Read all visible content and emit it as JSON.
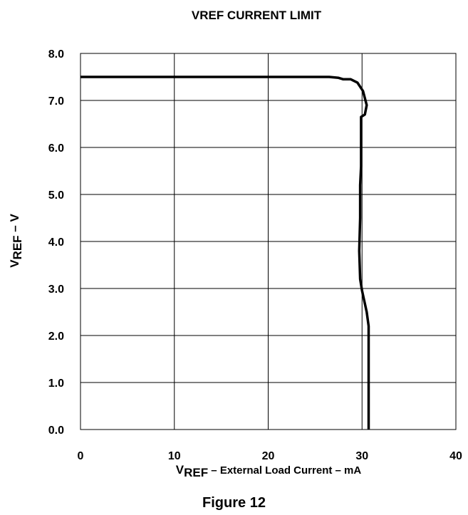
{
  "figure_label": "Figure 12",
  "chart_data": {
    "type": "line",
    "title": "VREF CURRENT LIMIT",
    "xlabel_parts": [
      "V",
      "REF",
      " – External Load Current – mA"
    ],
    "ylabel_parts": [
      "V",
      "REF",
      " – V"
    ],
    "xlim": [
      0,
      40
    ],
    "ylim": [
      0,
      8
    ],
    "xticks": [
      0,
      10,
      20,
      30,
      40
    ],
    "xtick_labels": [
      "0",
      "10",
      "20",
      "30",
      "40"
    ],
    "yticks": [
      0,
      1,
      2,
      3,
      4,
      5,
      6,
      7,
      8
    ],
    "ytick_labels": [
      "0.0",
      "1.0",
      "2.0",
      "3.0",
      "4.0",
      "5.0",
      "6.0",
      "7.0",
      "8.0"
    ],
    "grid": true,
    "colors": {
      "line": "#000000",
      "grid": "#000000"
    },
    "series": [
      {
        "x": [
          0,
          10,
          20,
          26.5,
          27.5,
          28.0,
          28.8,
          29.5,
          30.1,
          30.5,
          30.3,
          29.9,
          29.9,
          29.8,
          29.8,
          29.7,
          29.8,
          30.0,
          30.5,
          30.7,
          30.7,
          30.7
        ],
        "y": [
          7.5,
          7.5,
          7.5,
          7.5,
          7.48,
          7.45,
          7.45,
          7.38,
          7.2,
          6.9,
          6.7,
          6.65,
          5.6,
          5.2,
          4.5,
          3.8,
          3.2,
          2.95,
          2.5,
          2.2,
          1.9,
          0.0
        ]
      }
    ]
  }
}
